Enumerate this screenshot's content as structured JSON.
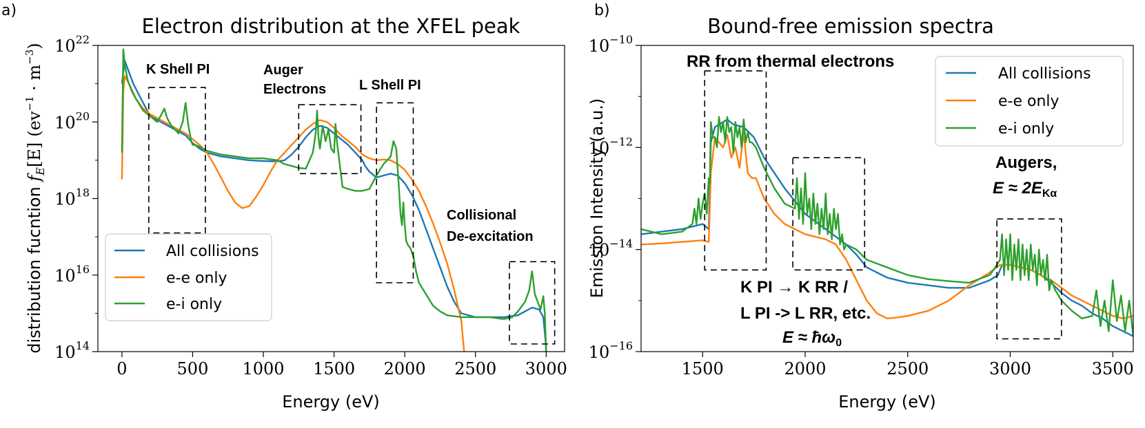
{
  "panel_labels": {
    "a": "a)",
    "b": "b)"
  },
  "colors": {
    "all": "#1f77b4",
    "ee": "#ff7f0e",
    "ei": "#2ca02c"
  },
  "chart_data": [
    {
      "type": "line",
      "title": "Electron distribution at the XFEL peak",
      "xlabel": "Energy (eV)",
      "ylabel_main": "distribution fucntion ",
      "ylabel_math": "f_E[E]",
      "ylabel_units": "(eV⁻¹ · m⁻³)",
      "ylabel_f": "f",
      "ylabel_sub": "E",
      "ylabel_br": "[E]",
      "ylabel_u1": "(ev",
      "ylabel_u1sup": "−1",
      "ylabel_u2": " · m",
      "ylabel_u2sup": "−3",
      "ylabel_u3": ")",
      "xlim": [
        -170,
        3130
      ],
      "ylim_log10": [
        14,
        22
      ],
      "xticks": [
        0,
        500,
        1000,
        1500,
        2000,
        2500,
        3000
      ],
      "xtick_labels": [
        "0",
        "500",
        "1000",
        "1500",
        "2000",
        "2500",
        "3000"
      ],
      "ytick_exps": [
        "14",
        "16",
        "18",
        "20",
        "22"
      ],
      "ytick_base": "10",
      "legend_location": "lower-left",
      "legend": [
        "All collisions",
        "e-e only",
        "e-i only"
      ],
      "annotations": {
        "k_shell": "K Shell PI",
        "auger_1": "Auger",
        "auger_2": "Electrons",
        "l_shell": "L Shell PI",
        "coll_1": "Collisional",
        "coll_2": "De-excitation"
      },
      "boxes": [
        {
          "x": [
            190,
            590
          ],
          "ylog10": [
            17.1,
            20.9
          ]
        },
        {
          "x": [
            1250,
            1690
          ],
          "ylog10": [
            18.65,
            20.45
          ]
        },
        {
          "x": [
            1800,
            2060
          ],
          "ylog10": [
            15.8,
            20.5
          ]
        },
        {
          "x": [
            2740,
            3060
          ],
          "ylog10": [
            14.2,
            16.35
          ]
        }
      ],
      "series": [
        {
          "name": "All collisions",
          "color": "#1f77b4",
          "x": [
            0,
            20,
            40,
            80,
            150,
            200,
            250,
            300,
            350,
            400,
            450,
            500,
            550,
            600,
            700,
            800,
            900,
            1000,
            1100,
            1150,
            1200,
            1250,
            1300,
            1350,
            1400,
            1450,
            1500,
            1550,
            1600,
            1650,
            1700,
            1720,
            1750,
            1800,
            1850,
            1900,
            1950,
            2000,
            2050,
            2100,
            2150,
            2200,
            2250,
            2300,
            2350,
            2400,
            2500,
            2600,
            2700,
            2800,
            2850,
            2900,
            2950,
            2980,
            3000
          ],
          "ylog10": [
            21.0,
            21.6,
            21.4,
            21.0,
            20.5,
            20.15,
            20.05,
            19.95,
            19.85,
            19.75,
            19.65,
            19.45,
            19.3,
            19.2,
            19.1,
            19.05,
            19.0,
            18.98,
            18.97,
            19.0,
            19.15,
            19.35,
            19.6,
            19.8,
            19.9,
            19.85,
            19.7,
            19.55,
            19.4,
            19.2,
            19.0,
            18.85,
            18.7,
            18.55,
            18.6,
            18.65,
            18.6,
            18.4,
            18.1,
            17.7,
            17.2,
            16.7,
            16.2,
            15.7,
            15.3,
            15.0,
            14.9,
            14.9,
            14.9,
            14.95,
            15.05,
            15.15,
            15.1,
            14.9,
            14.1
          ]
        },
        {
          "name": "e-e only",
          "color": "#ff7f0e",
          "x": [
            0,
            10,
            20,
            50,
            100,
            150,
            200,
            250,
            300,
            350,
            400,
            450,
            500,
            550,
            600,
            650,
            700,
            750,
            800,
            850,
            900,
            950,
            1000,
            1050,
            1100,
            1150,
            1200,
            1250,
            1300,
            1350,
            1400,
            1450,
            1500,
            1550,
            1600,
            1650,
            1700,
            1750,
            1800,
            1850,
            1900,
            1950,
            2000,
            2050,
            2100,
            2150,
            2200,
            2250,
            2300,
            2350,
            2400,
            2420
          ],
          "ylog10": [
            18.5,
            20.8,
            21.2,
            21.0,
            20.6,
            20.35,
            20.2,
            20.1,
            20.0,
            19.9,
            19.8,
            19.7,
            19.55,
            19.4,
            19.2,
            18.9,
            18.55,
            18.2,
            17.9,
            17.75,
            17.8,
            18.05,
            18.35,
            18.7,
            19.0,
            19.2,
            19.4,
            19.6,
            19.8,
            19.95,
            20.05,
            20.0,
            19.85,
            19.65,
            19.5,
            19.35,
            19.15,
            19.05,
            19.0,
            19.02,
            19.0,
            18.9,
            18.75,
            18.5,
            18.2,
            17.8,
            17.35,
            16.85,
            16.3,
            15.6,
            14.8,
            14.0
          ]
        },
        {
          "name": "e-i only",
          "color": "#2ca02c",
          "x": [
            0,
            10,
            20,
            40,
            70,
            100,
            150,
            200,
            250,
            280,
            300,
            320,
            350,
            400,
            430,
            450,
            470,
            490,
            500,
            520,
            550,
            600,
            700,
            800,
            900,
            1000,
            1100,
            1150,
            1200,
            1250,
            1300,
            1350,
            1370,
            1380,
            1390,
            1400,
            1410,
            1420,
            1440,
            1460,
            1480,
            1500,
            1510,
            1520,
            1540,
            1560,
            1600,
            1650,
            1700,
            1750,
            1800,
            1850,
            1900,
            1920,
            1940,
            1960,
            1970,
            1980,
            1990,
            2000,
            2010,
            2020,
            2030,
            2040,
            2060,
            2080,
            2100,
            2150,
            2200,
            2250,
            2300,
            2400,
            2500,
            2600,
            2700,
            2760,
            2800,
            2850,
            2880,
            2900,
            2920,
            2940,
            2960,
            2980,
            2990,
            3000
          ],
          "ylog10": [
            19.2,
            21.9,
            21.5,
            21.1,
            20.8,
            20.6,
            20.3,
            20.15,
            20.0,
            20.2,
            20.35,
            20.1,
            19.9,
            19.7,
            20.0,
            20.5,
            19.9,
            19.5,
            19.4,
            19.4,
            19.35,
            19.25,
            19.15,
            19.1,
            19.05,
            19.05,
            19.0,
            18.9,
            18.85,
            18.8,
            18.78,
            19.2,
            19.7,
            20.3,
            19.6,
            19.3,
            19.6,
            19.9,
            19.5,
            19.8,
            19.3,
            19.2,
            19.95,
            19.5,
            18.9,
            18.3,
            18.25,
            18.2,
            18.2,
            18.25,
            18.6,
            18.9,
            19.1,
            19.5,
            19.3,
            18.2,
            17.6,
            17.3,
            17.9,
            17.3,
            16.9,
            16.8,
            16.75,
            16.7,
            16.5,
            16.1,
            15.8,
            15.5,
            15.2,
            15.05,
            14.95,
            14.9,
            14.9,
            14.9,
            14.85,
            14.9,
            15.05,
            15.3,
            15.6,
            16.1,
            15.5,
            15.3,
            15.1,
            15.45,
            15.0,
            14.0
          ]
        }
      ]
    },
    {
      "type": "line",
      "title": "Bound-free emission spectra",
      "xlabel": "Energy (eV)",
      "ylabel": "Emission Intensity (a.u.)",
      "xlim": [
        1200,
        3600
      ],
      "ylim_log10": [
        -16,
        -10
      ],
      "xticks": [
        1500,
        2000,
        2500,
        3000,
        3500
      ],
      "xtick_labels": [
        "1500",
        "2000",
        "2500",
        "3000",
        "3500"
      ],
      "ytick_exps": [
        "−16",
        "−14",
        "−12",
        "−10"
      ],
      "ytick_base": "10",
      "legend_location": "upper-right",
      "legend": [
        "All collisions",
        "e-e only",
        "e-i only"
      ],
      "annotations": {
        "rr_thermal": "RR from thermal electrons",
        "kpi_line1": "K PI → K RR /",
        "kpi_line2": "L PI -> L RR, etc.",
        "kpi_eq": "E ≈ ħω",
        "kpi_eq_sub": "0",
        "augers": "Augers,",
        "augers_eq": "E ≈ 2E",
        "augers_eq_sub": "Kα"
      },
      "boxes": [
        {
          "x": [
            1510,
            1810
          ],
          "ylog10": [
            -14.4,
            -10.5
          ]
        },
        {
          "x": [
            1940,
            2290
          ],
          "ylog10": [
            -14.4,
            -12.2
          ]
        },
        {
          "x": [
            2935,
            3250
          ],
          "ylog10": [
            -15.75,
            -13.4
          ]
        }
      ],
      "series": [
        {
          "name": "All collisions",
          "color": "#1f77b4",
          "x": [
            1200,
            1300,
            1400,
            1450,
            1500,
            1530,
            1540,
            1560,
            1580,
            1600,
            1620,
            1650,
            1700,
            1750,
            1800,
            1850,
            1900,
            1950,
            2000,
            2050,
            2100,
            2150,
            2200,
            2250,
            2300,
            2350,
            2400,
            2450,
            2500,
            2600,
            2700,
            2800,
            2900,
            2940,
            2960,
            3000,
            3050,
            3100,
            3150,
            3200,
            3250,
            3300,
            3350,
            3400,
            3450,
            3500,
            3550,
            3600
          ],
          "ylog10": [
            -13.7,
            -13.65,
            -13.6,
            -13.55,
            -13.5,
            -13.6,
            -11.9,
            -11.6,
            -11.55,
            -11.5,
            -11.45,
            -11.55,
            -11.6,
            -11.8,
            -12.2,
            -12.5,
            -12.8,
            -13.05,
            -13.3,
            -13.45,
            -13.6,
            -13.75,
            -13.9,
            -14.1,
            -14.35,
            -14.45,
            -14.55,
            -14.6,
            -14.65,
            -14.7,
            -14.75,
            -14.75,
            -14.6,
            -14.5,
            -14.3,
            -14.3,
            -14.35,
            -14.4,
            -14.5,
            -14.65,
            -14.85,
            -15.0,
            -15.1,
            -15.25,
            -15.35,
            -15.5,
            -15.6,
            -15.7
          ]
        },
        {
          "name": "e-e only",
          "color": "#ff7f0e",
          "x": [
            1200,
            1300,
            1400,
            1500,
            1530,
            1540,
            1560,
            1580,
            1600,
            1620,
            1640,
            1660,
            1680,
            1700,
            1720,
            1740,
            1760,
            1780,
            1800,
            1850,
            1900,
            1950,
            2000,
            2050,
            2100,
            2150,
            2200,
            2250,
            2300,
            2350,
            2400,
            2450,
            2500,
            2600,
            2700,
            2800,
            2900,
            2950,
            3000,
            3100,
            3200,
            3300,
            3400,
            3500,
            3550,
            3600
          ],
          "ylog10": [
            -13.9,
            -13.88,
            -13.85,
            -13.82,
            -13.85,
            -12.5,
            -11.8,
            -11.9,
            -12.0,
            -11.75,
            -12.2,
            -12.0,
            -12.4,
            -11.7,
            -12.5,
            -12.6,
            -12.6,
            -12.8,
            -13.0,
            -13.3,
            -13.5,
            -13.6,
            -13.7,
            -13.75,
            -13.8,
            -13.9,
            -14.2,
            -14.6,
            -15.0,
            -15.25,
            -15.35,
            -15.33,
            -15.3,
            -15.2,
            -15.0,
            -14.7,
            -14.45,
            -14.3,
            -14.3,
            -14.4,
            -14.6,
            -14.9,
            -15.1,
            -15.3,
            -15.35,
            -15.3
          ]
        },
        {
          "name": "e-i only",
          "color": "#2ca02c",
          "x": [
            1200,
            1300,
            1400,
            1450,
            1460,
            1470,
            1480,
            1490,
            1500,
            1510,
            1520,
            1530,
            1535,
            1540,
            1550,
            1560,
            1570,
            1580,
            1590,
            1600,
            1610,
            1620,
            1630,
            1640,
            1650,
            1660,
            1670,
            1680,
            1690,
            1700,
            1710,
            1720,
            1730,
            1740,
            1760,
            1780,
            1800,
            1850,
            1900,
            1950,
            1960,
            1970,
            1980,
            1990,
            2000,
            2010,
            2020,
            2030,
            2040,
            2050,
            2060,
            2070,
            2080,
            2090,
            2100,
            2110,
            2120,
            2130,
            2140,
            2150,
            2160,
            2170,
            2180,
            2190,
            2200,
            2250,
            2300,
            2400,
            2500,
            2600,
            2700,
            2800,
            2900,
            2935,
            2950,
            2960,
            2970,
            2980,
            2990,
            3000,
            3010,
            3020,
            3030,
            3040,
            3050,
            3060,
            3070,
            3080,
            3090,
            3100,
            3110,
            3120,
            3130,
            3140,
            3150,
            3160,
            3170,
            3180,
            3190,
            3200,
            3220,
            3250,
            3300,
            3350,
            3400,
            3420,
            3440,
            3460,
            3480,
            3500,
            3520,
            3540,
            3560,
            3580,
            3600
          ],
          "ylog10": [
            -13.6,
            -13.7,
            -13.65,
            -13.5,
            -13.2,
            -13.5,
            -13.0,
            -13.4,
            -13.1,
            -12.9,
            -13.3,
            -12.6,
            -12.7,
            -11.5,
            -11.8,
            -11.8,
            -12.0,
            -11.4,
            -11.7,
            -11.5,
            -11.9,
            -11.4,
            -11.7,
            -11.6,
            -12.1,
            -11.5,
            -11.8,
            -11.6,
            -12.0,
            -11.45,
            -11.9,
            -11.7,
            -11.9,
            -11.9,
            -12.0,
            -12.2,
            -12.4,
            -12.8,
            -13.1,
            -13.2,
            -12.6,
            -13.4,
            -12.8,
            -13.5,
            -12.5,
            -13.3,
            -13.0,
            -13.6,
            -12.9,
            -13.5,
            -13.1,
            -13.7,
            -13.2,
            -13.6,
            -12.9,
            -13.7,
            -13.3,
            -13.8,
            -13.2,
            -13.6,
            -13.3,
            -13.9,
            -13.7,
            -14.0,
            -13.9,
            -14.0,
            -14.2,
            -14.35,
            -14.5,
            -14.58,
            -14.62,
            -14.65,
            -14.5,
            -14.3,
            -14.2,
            -13.7,
            -14.5,
            -13.8,
            -14.4,
            -13.7,
            -14.6,
            -13.9,
            -14.4,
            -13.8,
            -14.6,
            -13.9,
            -14.5,
            -14.0,
            -14.6,
            -13.9,
            -14.4,
            -14.1,
            -14.7,
            -14.0,
            -14.5,
            -14.2,
            -14.6,
            -14.1,
            -14.8,
            -14.6,
            -14.8,
            -15.0,
            -15.2,
            -15.35,
            -15.3,
            -14.8,
            -15.5,
            -15.0,
            -15.6,
            -14.6,
            -15.4,
            -14.9,
            -15.6,
            -15.0,
            -15.7
          ]
        }
      ]
    }
  ]
}
